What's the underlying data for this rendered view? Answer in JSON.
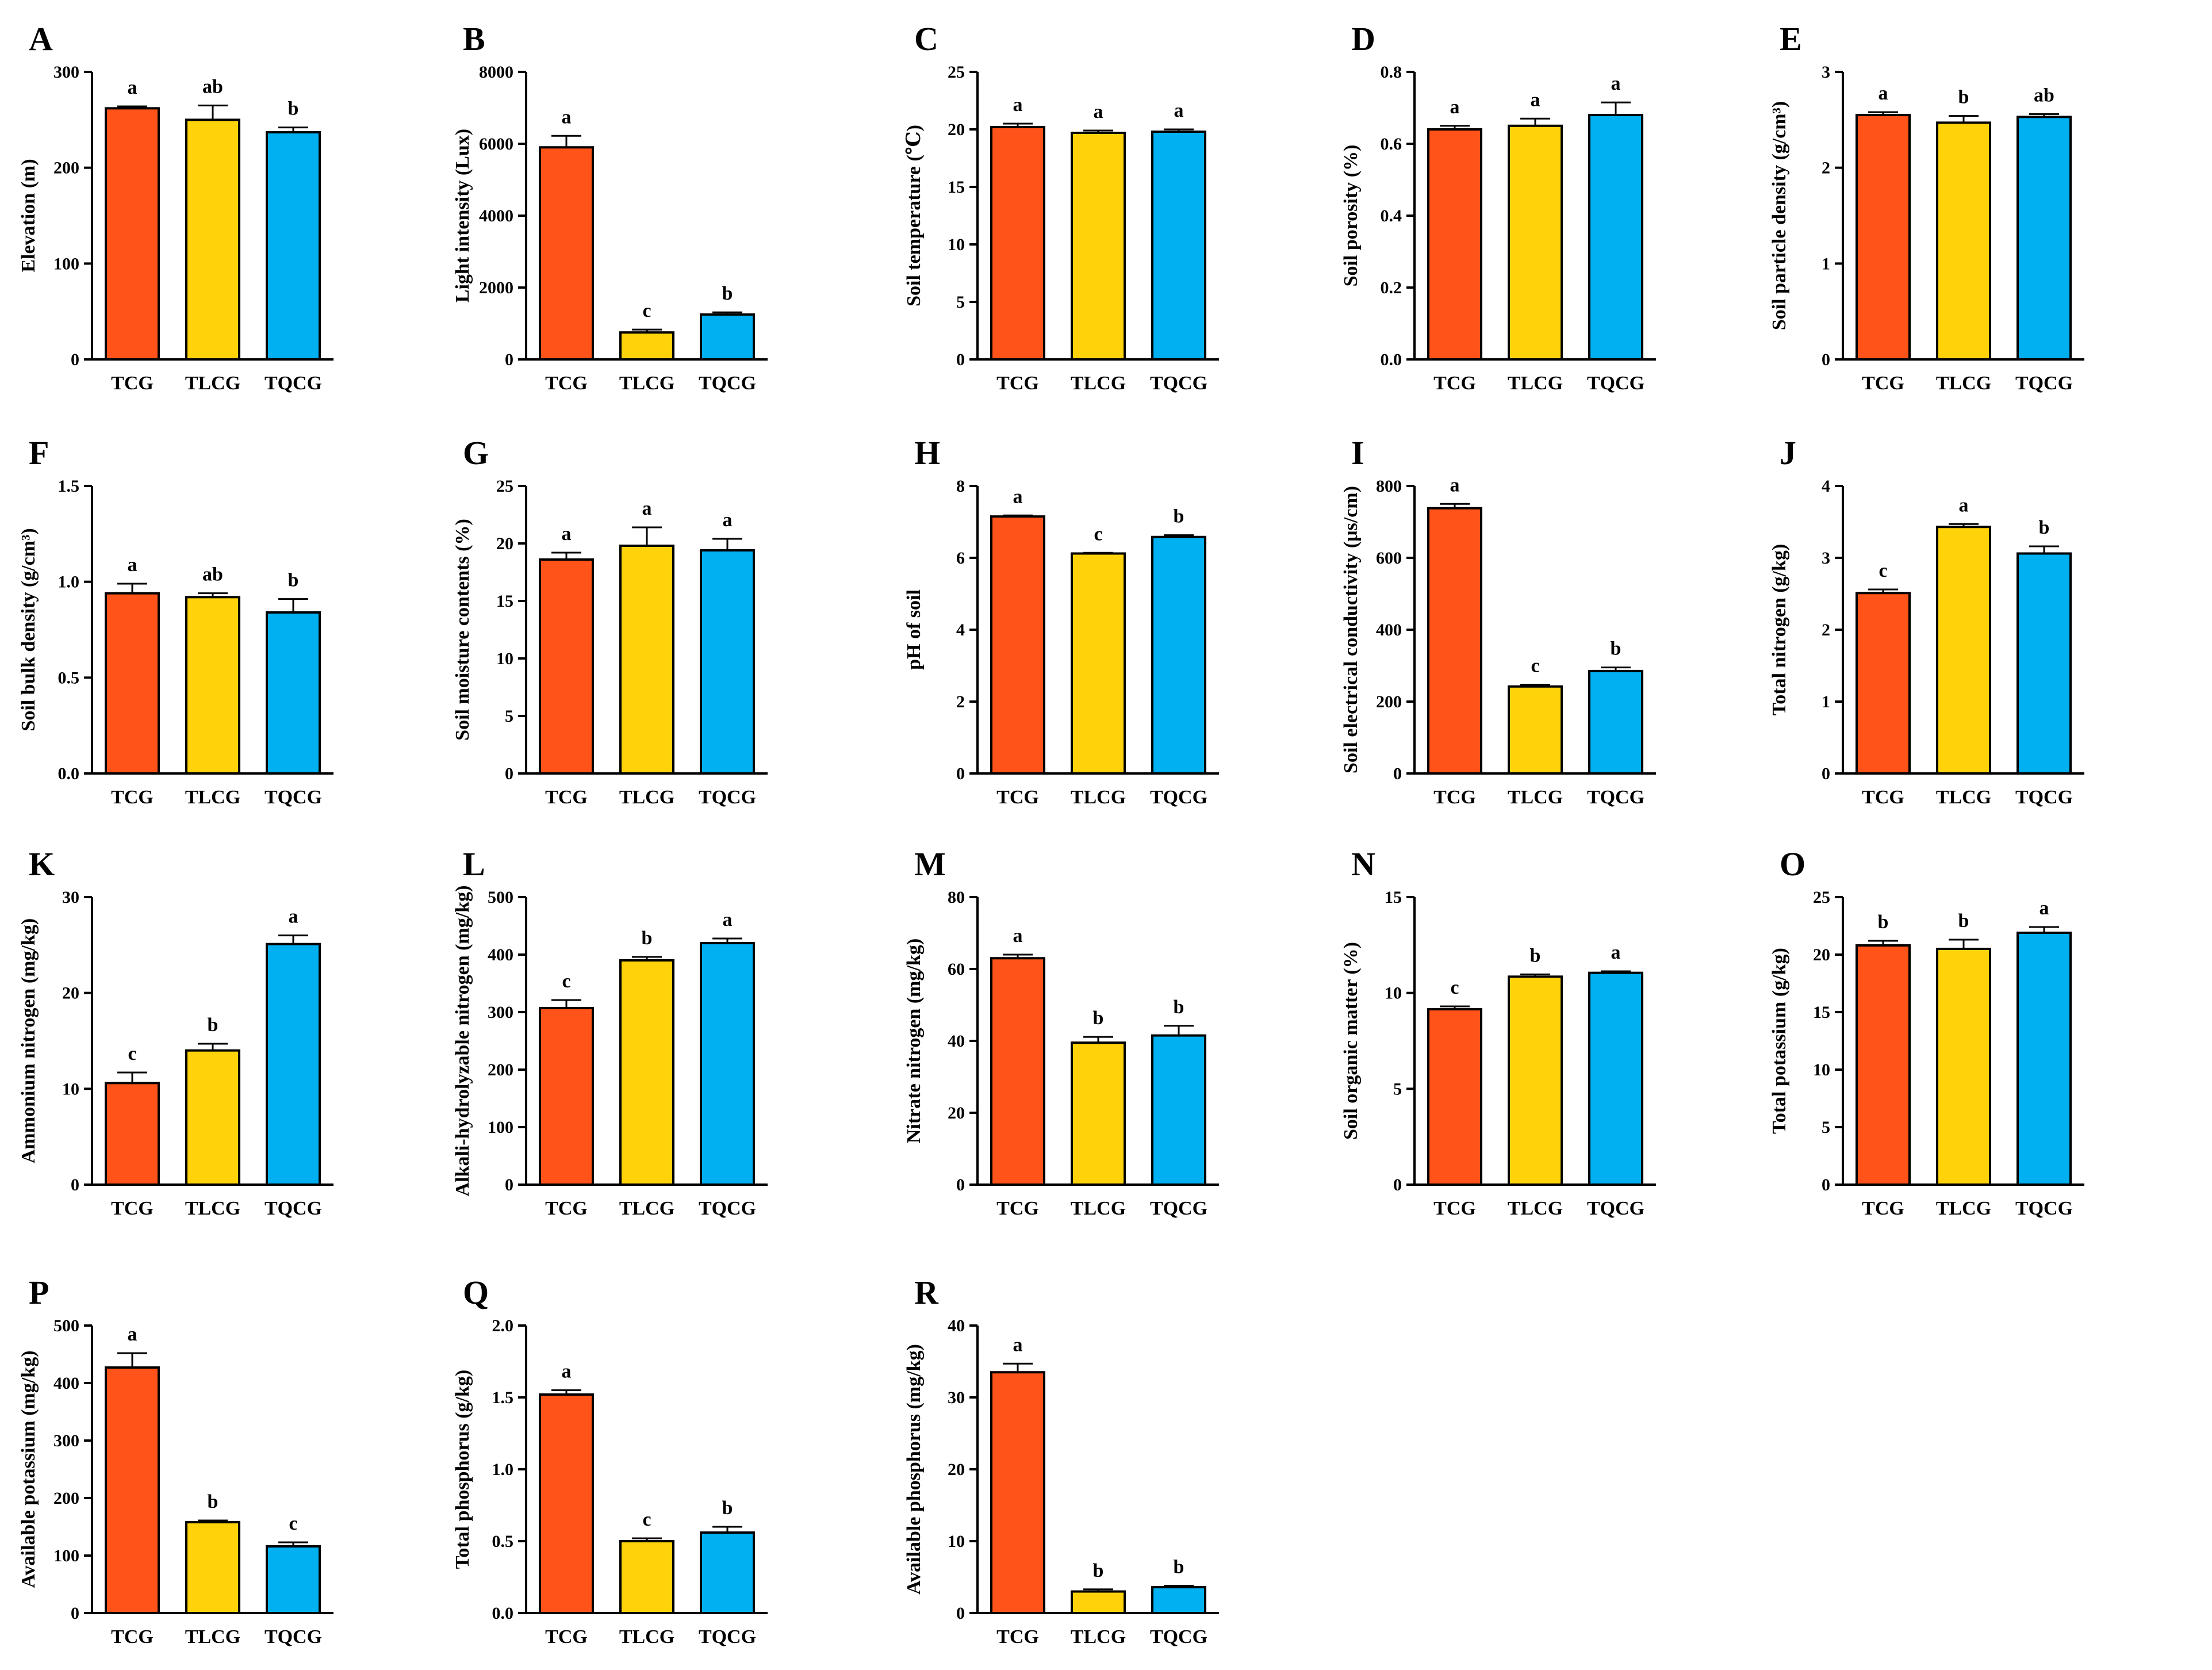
{
  "palette": {
    "TCG": "#FF5319",
    "TLCG": "#FFD20A",
    "TQCG": "#00B0F0",
    "axis": "#000000"
  },
  "chart_data": [
    {
      "type": "bar",
      "letter": "A",
      "ylabel": "Elevation (m)",
      "ylim": [
        0,
        300
      ],
      "yticks": [
        "0",
        "100",
        "200",
        "300"
      ],
      "categories": [
        "TCG",
        "TLCG",
        "TQCG"
      ],
      "values": [
        262,
        250,
        237
      ],
      "errors": [
        2,
        15,
        5
      ],
      "sig": [
        "a",
        "ab",
        "b"
      ]
    },
    {
      "type": "bar",
      "letter": "B",
      "ylabel": "Light intensity (Lux)",
      "ylim": [
        0,
        8000
      ],
      "yticks": [
        "0",
        "2000",
        "4000",
        "6000",
        "8000"
      ],
      "categories": [
        "TCG",
        "TLCG",
        "TQCG"
      ],
      "values": [
        5900,
        750,
        1250
      ],
      "errors": [
        320,
        80,
        60
      ],
      "sig": [
        "a",
        "c",
        "b"
      ]
    },
    {
      "type": "bar",
      "letter": "C",
      "ylabel": "Soil temperature (℃)",
      "ylim": [
        0,
        25
      ],
      "yticks": [
        "0",
        "5",
        "10",
        "15",
        "20",
        "25"
      ],
      "categories": [
        "TCG",
        "TLCG",
        "TQCG"
      ],
      "values": [
        20.2,
        19.7,
        19.8
      ],
      "errors": [
        0.3,
        0.2,
        0.2
      ],
      "sig": [
        "a",
        "a",
        "a"
      ]
    },
    {
      "type": "bar",
      "letter": "D",
      "ylabel": "Soil porosity (%)",
      "ylim": [
        0,
        0.8
      ],
      "yticks": [
        "0.0",
        "0.2",
        "0.4",
        "0.6",
        "0.8"
      ],
      "categories": [
        "TCG",
        "TLCG",
        "TQCG"
      ],
      "values": [
        0.64,
        0.65,
        0.68
      ],
      "errors": [
        0.01,
        0.02,
        0.035
      ],
      "sig": [
        "a",
        "a",
        "a"
      ]
    },
    {
      "type": "bar",
      "letter": "E",
      "ylabel": "Soil particle density (g/cm³)",
      "ylim": [
        0,
        3
      ],
      "yticks": [
        "0",
        "1",
        "2",
        "3"
      ],
      "categories": [
        "TCG",
        "TLCG",
        "TQCG"
      ],
      "values": [
        2.55,
        2.47,
        2.53
      ],
      "errors": [
        0.03,
        0.07,
        0.03
      ],
      "sig": [
        "a",
        "b",
        "ab"
      ]
    },
    {
      "type": "bar",
      "letter": "F",
      "ylabel": "Soil bulk density (g/cm³)",
      "ylim": [
        0,
        1.5
      ],
      "yticks": [
        "0.0",
        "0.5",
        "1.0",
        "1.5"
      ],
      "categories": [
        "TCG",
        "TLCG",
        "TQCG"
      ],
      "values": [
        0.94,
        0.92,
        0.84
      ],
      "errors": [
        0.05,
        0.02,
        0.07
      ],
      "sig": [
        "a",
        "ab",
        "b"
      ]
    },
    {
      "type": "bar",
      "letter": "G",
      "ylabel": "Soil moisture contents (%)",
      "ylim": [
        0,
        25
      ],
      "yticks": [
        "0",
        "5",
        "10",
        "15",
        "20",
        "25"
      ],
      "categories": [
        "TCG",
        "TLCG",
        "TQCG"
      ],
      "values": [
        18.6,
        19.8,
        19.4
      ],
      "errors": [
        0.6,
        1.6,
        1.0
      ],
      "sig": [
        "a",
        "a",
        "a"
      ]
    },
    {
      "type": "bar",
      "letter": "H",
      "ylabel": "pH of soil",
      "ylim": [
        0,
        8
      ],
      "yticks": [
        "0",
        "2",
        "4",
        "6",
        "8"
      ],
      "categories": [
        "TCG",
        "TLCG",
        "TQCG"
      ],
      "values": [
        7.15,
        6.12,
        6.58
      ],
      "errors": [
        0.03,
        0.02,
        0.05
      ],
      "sig": [
        "a",
        "c",
        "b"
      ]
    },
    {
      "type": "bar",
      "letter": "I",
      "ylabel": "Soil electrical conductivity (μs/cm)",
      "ylim": [
        0,
        800
      ],
      "yticks": [
        "0",
        "200",
        "400",
        "600",
        "800"
      ],
      "categories": [
        "TCG",
        "TLCG",
        "TQCG"
      ],
      "values": [
        738,
        242,
        285
      ],
      "errors": [
        12,
        5,
        10
      ],
      "sig": [
        "a",
        "c",
        "b"
      ]
    },
    {
      "type": "bar",
      "letter": "J",
      "ylabel": "Total nitrogen (g/kg)",
      "ylim": [
        0,
        4
      ],
      "yticks": [
        "0",
        "1",
        "2",
        "3",
        "4"
      ],
      "categories": [
        "TCG",
        "TLCG",
        "TQCG"
      ],
      "values": [
        2.51,
        3.43,
        3.06
      ],
      "errors": [
        0.05,
        0.04,
        0.1
      ],
      "sig": [
        "c",
        "a",
        "b"
      ]
    },
    {
      "type": "bar",
      "letter": "K",
      "ylabel": "Ammonium nitrogen (mg/kg)",
      "ylim": [
        0,
        30
      ],
      "yticks": [
        "0",
        "10",
        "20",
        "30"
      ],
      "categories": [
        "TCG",
        "TLCG",
        "TQCG"
      ],
      "values": [
        10.6,
        14.0,
        25.1
      ],
      "errors": [
        1.1,
        0.7,
        0.9
      ],
      "sig": [
        "c",
        "b",
        "a"
      ]
    },
    {
      "type": "bar",
      "letter": "L",
      "ylabel": "Alkali-hydrolyzable nitrogen (mg/kg)",
      "ylim": [
        0,
        500
      ],
      "yticks": [
        "0",
        "100",
        "200",
        "300",
        "400",
        "500"
      ],
      "categories": [
        "TCG",
        "TLCG",
        "TQCG"
      ],
      "values": [
        307,
        390,
        420
      ],
      "errors": [
        14,
        6,
        8
      ],
      "sig": [
        "c",
        "b",
        "a"
      ]
    },
    {
      "type": "bar",
      "letter": "M",
      "ylabel": "Nitrate nitrogen (mg/kg)",
      "ylim": [
        0,
        80
      ],
      "yticks": [
        "0",
        "20",
        "40",
        "60",
        "80"
      ],
      "categories": [
        "TCG",
        "TLCG",
        "TQCG"
      ],
      "values": [
        63,
        39.5,
        41.5
      ],
      "errors": [
        1,
        1.6,
        2.7
      ],
      "sig": [
        "a",
        "b",
        "b"
      ]
    },
    {
      "type": "bar",
      "letter": "N",
      "ylabel": "Soil organic matter (%)",
      "ylim": [
        0,
        15
      ],
      "yticks": [
        "0",
        "5",
        "10",
        "15"
      ],
      "categories": [
        "TCG",
        "TLCG",
        "TQCG"
      ],
      "values": [
        9.15,
        10.85,
        11.05
      ],
      "errors": [
        0.15,
        0.12,
        0.08
      ],
      "sig": [
        "c",
        "b",
        "a"
      ]
    },
    {
      "type": "bar",
      "letter": "O",
      "ylabel": "Total potassium (g/kg)",
      "ylim": [
        0,
        25
      ],
      "yticks": [
        "0",
        "5",
        "10",
        "15",
        "20",
        "25"
      ],
      "categories": [
        "TCG",
        "TLCG",
        "TQCG"
      ],
      "values": [
        20.8,
        20.5,
        21.9
      ],
      "errors": [
        0.4,
        0.8,
        0.5
      ],
      "sig": [
        "b",
        "b",
        "a"
      ]
    },
    {
      "type": "bar",
      "letter": "P",
      "ylabel": "Available potassium (mg/kg)",
      "ylim": [
        0,
        500
      ],
      "yticks": [
        "0",
        "100",
        "200",
        "300",
        "400",
        "500"
      ],
      "categories": [
        "TCG",
        "TLCG",
        "TQCG"
      ],
      "values": [
        427,
        158,
        116
      ],
      "errors": [
        25,
        3,
        7
      ],
      "sig": [
        "a",
        "b",
        "c"
      ]
    },
    {
      "type": "bar",
      "letter": "Q",
      "ylabel": "Total phosphorus (g/kg)",
      "ylim": [
        0,
        2.0
      ],
      "yticks": [
        "0.0",
        "0.5",
        "1.0",
        "1.5",
        "2.0"
      ],
      "categories": [
        "TCG",
        "TLCG",
        "TQCG"
      ],
      "values": [
        1.52,
        0.5,
        0.56
      ],
      "errors": [
        0.03,
        0.02,
        0.04
      ],
      "sig": [
        "a",
        "c",
        "b"
      ]
    },
    {
      "type": "bar",
      "letter": "R",
      "ylabel": "Available phosphorus (mg/kg)",
      "ylim": [
        0,
        40
      ],
      "yticks": [
        "0",
        "10",
        "20",
        "30",
        "40"
      ],
      "categories": [
        "TCG",
        "TLCG",
        "TQCG"
      ],
      "values": [
        33.5,
        3.0,
        3.6
      ],
      "errors": [
        1.2,
        0.3,
        0.2
      ],
      "sig": [
        "a",
        "b",
        "b"
      ]
    }
  ]
}
